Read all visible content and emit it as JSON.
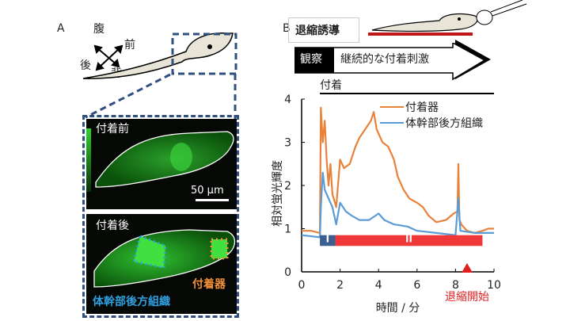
{
  "panel_a": {
    "label": "A",
    "axes": {
      "ventral": "腹",
      "anterior": "前",
      "posterior": "後",
      "dorsal": "背"
    },
    "before": {
      "title": "付着前",
      "scale_bar": "50 µm"
    },
    "after": {
      "title": "付着後",
      "adhesive_organ_label": "付着器",
      "trunk_label": "体幹部後方組織"
    },
    "colors": {
      "dash_box": "#2f4f80",
      "fluorescence": "#20c020",
      "adhesive": "#f0903a",
      "trunk": "#30a0e0"
    }
  },
  "panel_b": {
    "label": "B",
    "induction": "退縮誘導",
    "observe": "観察",
    "stimulus": "継続的な付着刺激",
    "red_bar_color": "#c01818"
  },
  "chart_data": {
    "type": "line",
    "title": "",
    "xlabel": "時間 / 分",
    "ylabel": "相対蛍光輝度",
    "xlim": [
      0,
      10
    ],
    "ylim": [
      0,
      4
    ],
    "xticks": [
      "0",
      "2",
      "4",
      "6",
      "8",
      "10"
    ],
    "yticks": [
      "0",
      "1",
      "2",
      "3",
      "4"
    ],
    "legend_placement": "top-right",
    "attach_label": "付着",
    "attach_range": [
      0.95,
      10
    ],
    "phases": [
      {
        "label": "I",
        "range": [
          0.95,
          1.75
        ],
        "color": "#3d5f8f"
      },
      {
        "label": "II",
        "range": [
          1.75,
          9.4
        ],
        "color": "#f03838"
      }
    ],
    "retraction": {
      "label": "退縮開始",
      "x": 8.6,
      "color": "#e02020"
    },
    "series": [
      {
        "name": "付着器",
        "color": "#e8823a",
        "x": [
          0,
          0.5,
          0.95,
          1.0,
          1.1,
          1.2,
          1.3,
          1.4,
          1.5,
          1.6,
          1.8,
          2.0,
          2.2,
          2.5,
          2.8,
          3.0,
          3.3,
          3.6,
          3.75,
          3.9,
          4.2,
          4.5,
          4.8,
          5.0,
          5.3,
          5.6,
          6.0,
          6.3,
          6.6,
          7.0,
          7.5,
          7.9,
          8.1,
          8.15,
          8.2,
          8.3,
          8.6,
          9.0,
          9.4,
          9.7,
          10
        ],
        "y": [
          0.95,
          0.95,
          0.9,
          3.8,
          3.0,
          3.5,
          2.6,
          2.0,
          2.5,
          1.8,
          1.5,
          2.6,
          2.4,
          2.5,
          2.9,
          3.1,
          3.3,
          3.5,
          3.7,
          3.3,
          3.0,
          2.9,
          2.6,
          2.2,
          1.9,
          1.7,
          1.6,
          1.5,
          1.3,
          1.15,
          1.2,
          1.35,
          1.4,
          2.5,
          1.2,
          1.1,
          0.95,
          0.9,
          0.95,
          1.0,
          1.0
        ]
      },
      {
        "name": "体幹部後方組織",
        "color": "#5b9bd5",
        "x": [
          0,
          0.95,
          1.0,
          1.1,
          1.2,
          1.4,
          1.6,
          1.8,
          2.0,
          2.3,
          2.6,
          3.0,
          3.5,
          4.0,
          4.3,
          4.8,
          5.5,
          6.0,
          7.0,
          8.0,
          8.15,
          8.25,
          9.0,
          10
        ],
        "y": [
          0.85,
          0.8,
          1.5,
          2.3,
          1.9,
          1.7,
          1.5,
          1.1,
          1.6,
          1.4,
          1.3,
          1.2,
          1.2,
          1.35,
          1.2,
          1.1,
          1.05,
          0.95,
          0.9,
          0.85,
          1.7,
          0.95,
          0.9,
          0.9
        ]
      }
    ]
  }
}
